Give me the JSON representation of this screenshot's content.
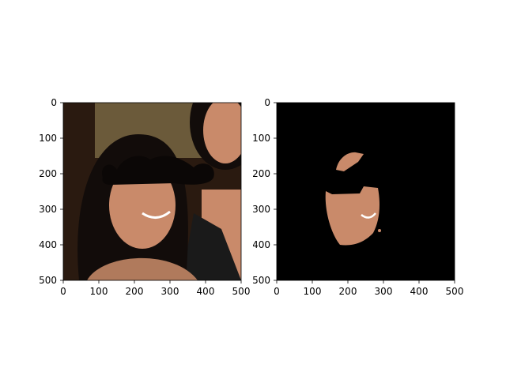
{
  "chart_data": [
    {
      "type": "image",
      "title": "",
      "xlabel": "",
      "ylabel": "",
      "xlim": [
        0,
        500
      ],
      "ylim": [
        500,
        0
      ],
      "xticks": [
        0,
        100,
        200,
        300,
        400,
        500
      ],
      "yticks": [
        0,
        100,
        200,
        300,
        400,
        500
      ],
      "content": "photo of two women; left face overlaid with black mustache shape",
      "colors": {
        "bg": "#2a1a10",
        "skin": "#c98a6a",
        "hair": "#120c0a",
        "mustache": "#0b0706",
        "wall": "#6b5a3a",
        "dress": "#1a1a1a"
      }
    },
    {
      "type": "image",
      "title": "",
      "xlabel": "",
      "ylabel": "",
      "xlim": [
        0,
        500
      ],
      "ylim": [
        500,
        0
      ],
      "xticks": [
        0,
        100,
        200,
        300,
        400,
        500
      ],
      "yticks": [
        0,
        100,
        200,
        300,
        400,
        500
      ],
      "content": "segmented face mask on black background with mustache region removed",
      "colors": {
        "bg": "#000000",
        "skin": "#c98a6a"
      }
    }
  ]
}
